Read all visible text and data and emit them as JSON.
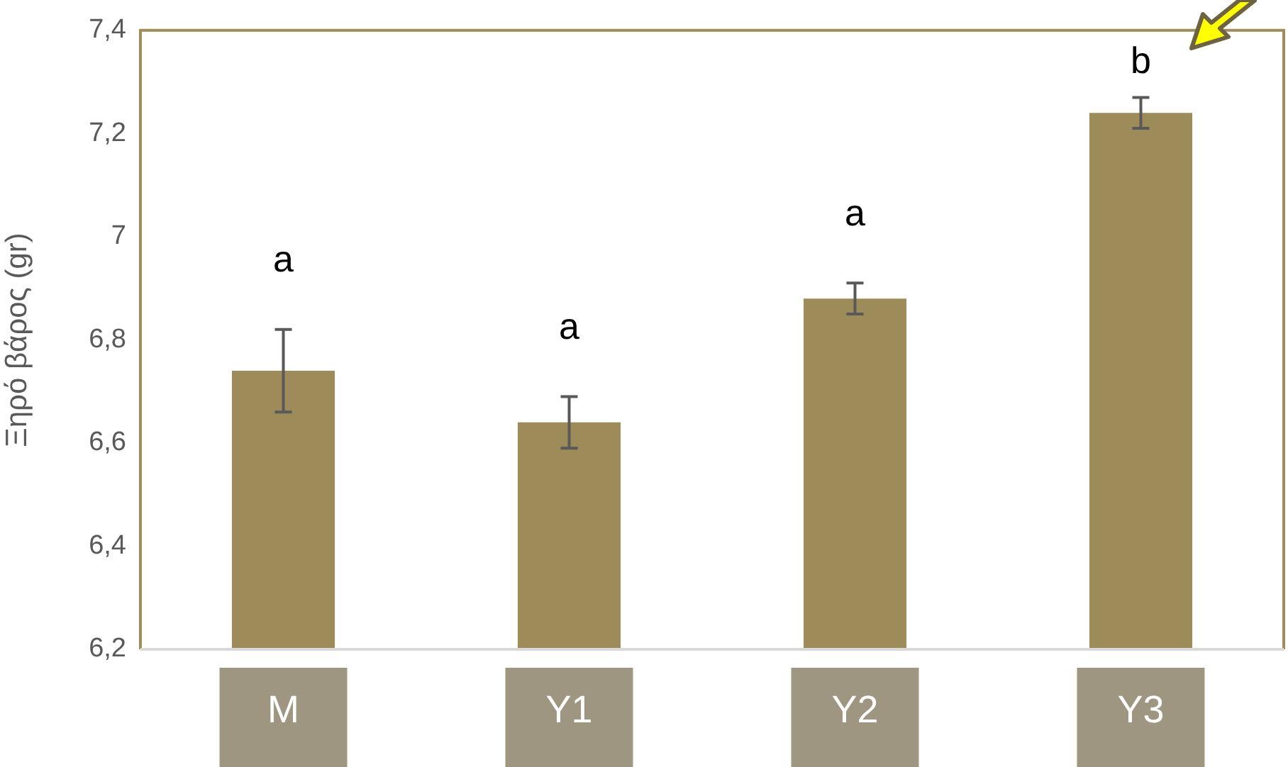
{
  "chart_data": {
    "type": "bar",
    "ylabel": "Ξηρό βάρος (gr)",
    "categories": [
      "M",
      "Y1",
      "Y2",
      "Y3"
    ],
    "values": [
      6.74,
      6.64,
      6.88,
      7.24
    ],
    "errors": [
      0.08,
      0.05,
      0.03,
      0.03
    ],
    "color": "#9e8b5a",
    "ylim": [
      6.2,
      7.4
    ],
    "yticks": [
      {
        "value": 6.2,
        "label": "6,2"
      },
      {
        "value": 6.4,
        "label": "6,4"
      },
      {
        "value": 6.6,
        "label": "6,6"
      },
      {
        "value": 6.8,
        "label": "6,8"
      },
      {
        "value": 7,
        "label": "7"
      },
      {
        "value": 7.2,
        "label": "7,2"
      },
      {
        "value": 7.4,
        "label": "7,4"
      }
    ],
    "grid": false,
    "legend": false,
    "annotations": [
      "a",
      "a",
      "a",
      "b"
    ]
  }
}
